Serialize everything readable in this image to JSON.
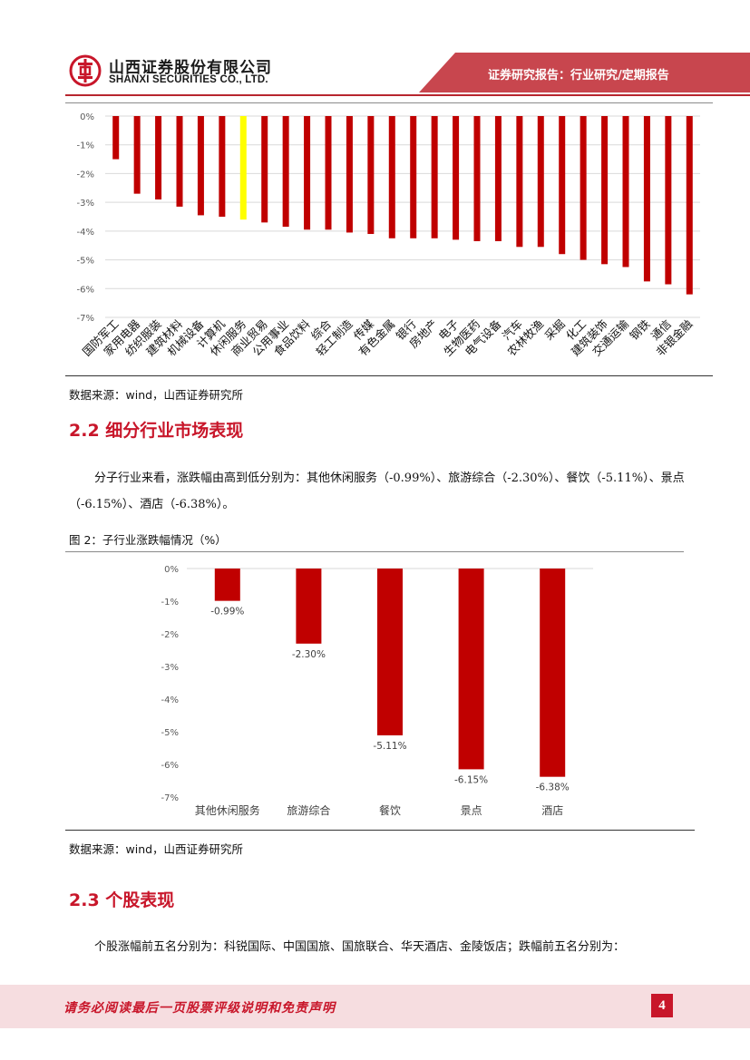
{
  "header": {
    "company_cn": "山西证券股份有限公司",
    "company_en": "SHANXI SECURITIES CO., LTD.",
    "report_type": "证券研究报告：行业研究/定期报告",
    "brand_color": "#b8262e"
  },
  "chart1_source": "数据来源：wind，山西证券研究所",
  "section_2_2": {
    "title": "2.2 细分行业市场表现",
    "paragraph": "分子行业来看，涨跌幅由高到低分别为：其他休闲服务（-0.99%）、旅游综合（-2.30%）、餐饮（-5.11%）、景点（-6.15%）、酒店（-6.38%）。"
  },
  "figure2_title": "图 2：子行业涨跌幅情况（%）",
  "chart2_source": "数据来源：wind，山西证券研究所",
  "section_2_3": {
    "title": "2.3 个股表现",
    "paragraph": "个股涨幅前五名分别为：科锐国际、中国国旅、国旅联合、华天酒店、金陵饭店；跌幅前五名分别为："
  },
  "footer": {
    "disclaimer": "请务必阅读最后一页股票评级说明和免责声明",
    "page_number": "4"
  },
  "chart_data": [
    {
      "type": "bar",
      "categories": [
        "国防军工",
        "家用电器",
        "纺织服装",
        "建筑材料",
        "机械设备",
        "计算机",
        "休闲服务",
        "商业贸易",
        "公用事业",
        "食品饮料",
        "综合",
        "轻工制造",
        "传媒",
        "有色金属",
        "银行",
        "房地产",
        "电子",
        "生物医药",
        "电气设备",
        "汽车",
        "农林牧渔",
        "采掘",
        "化工",
        "建筑装饰",
        "交通运输",
        "钢铁",
        "通信",
        "非银金融"
      ],
      "values": [
        -1.5,
        -2.7,
        -2.9,
        -3.15,
        -3.45,
        -3.5,
        -3.6,
        -3.7,
        -3.85,
        -3.95,
        -3.95,
        -4.05,
        -4.1,
        -4.25,
        -4.25,
        -4.25,
        -4.3,
        -4.35,
        -4.35,
        -4.55,
        -4.55,
        -4.8,
        -5.0,
        -5.15,
        -5.25,
        -5.75,
        -5.85,
        -6.2
      ],
      "highlight_index": 6,
      "bar_color": "#c00000",
      "highlight_color": "#ffff00",
      "y_ticks": [
        "0%",
        "-1%",
        "-2%",
        "-3%",
        "-4%",
        "-5%",
        "-6%",
        "-7%"
      ],
      "ylim": [
        -7,
        0
      ],
      "grid": true
    },
    {
      "type": "bar",
      "categories": [
        "其他休闲服务",
        "旅游综合",
        "餐饮",
        "景点",
        "酒店"
      ],
      "values": [
        -0.99,
        -2.3,
        -5.11,
        -6.15,
        -6.38
      ],
      "data_labels": [
        "-0.99%",
        "-2.30%",
        "-5.11%",
        "-6.15%",
        "-6.38%"
      ],
      "bar_color": "#c00000",
      "y_ticks": [
        "0%",
        "-1%",
        "-2%",
        "-3%",
        "-4%",
        "-5%",
        "-6%",
        "-7%"
      ],
      "ylim": [
        -7,
        0
      ],
      "grid": false
    }
  ]
}
